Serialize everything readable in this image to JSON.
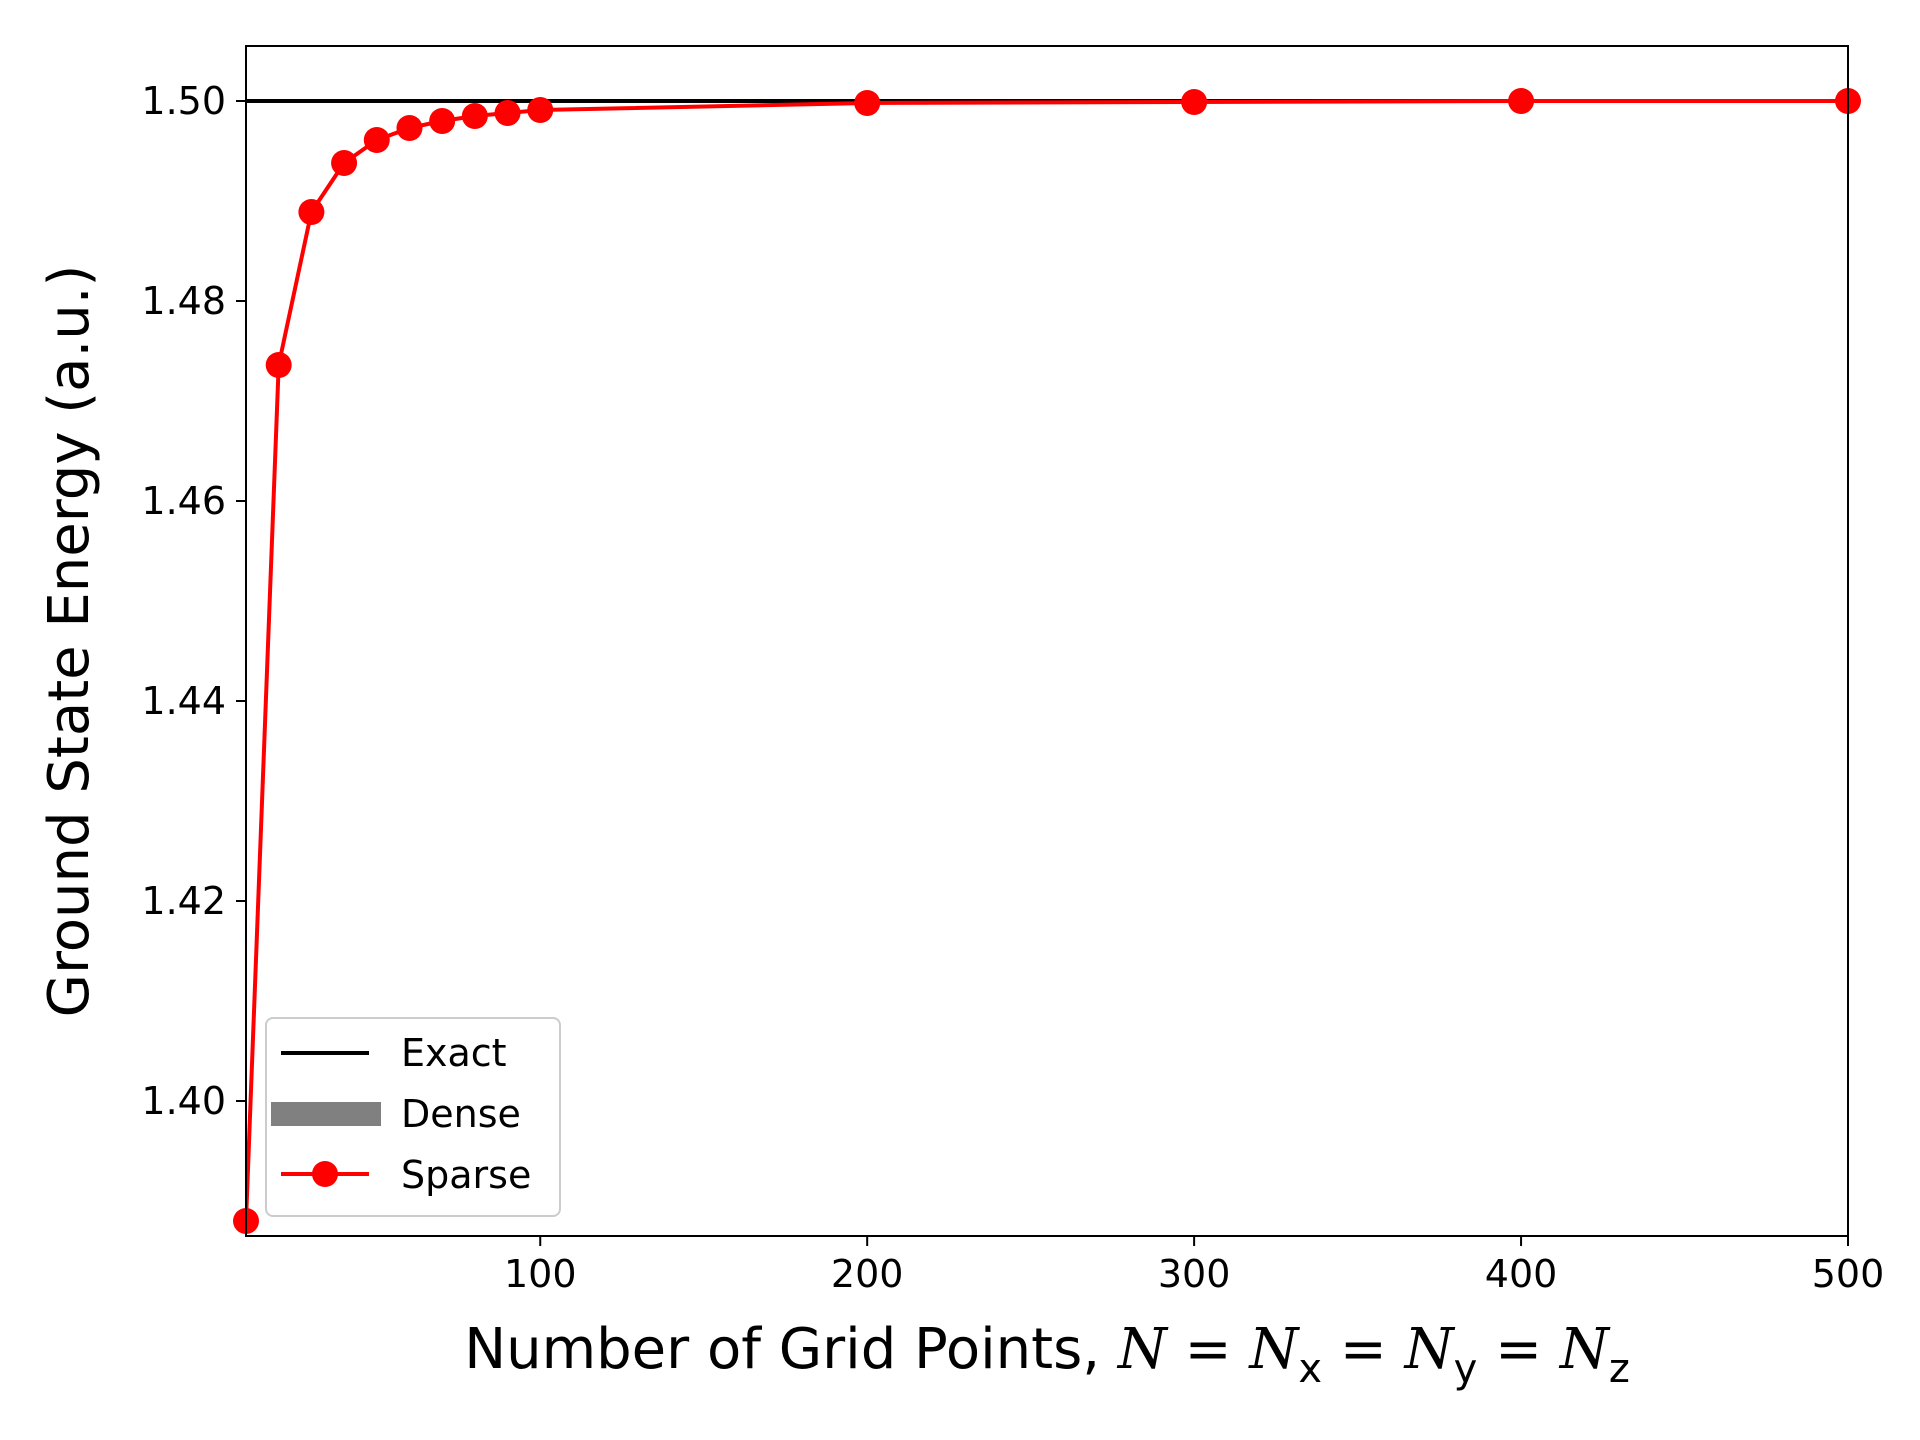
{
  "chart_data": {
    "type": "line",
    "xlabel": {
      "prefix": "Number of Grid Points, ",
      "N": "N",
      "eq": " = ",
      "Nx": "N",
      "x_sub": "x",
      "Ny": "N",
      "y_sub": "y",
      "Nz": "N",
      "z_sub": "z"
    },
    "ylabel": "Ground State Energy (a.u.)",
    "xlim": [
      10,
      500
    ],
    "ylim": [
      1.3865,
      1.5055
    ],
    "xticks": [
      {
        "value": 100,
        "label": "100"
      },
      {
        "value": 200,
        "label": "200"
      },
      {
        "value": 300,
        "label": "300"
      },
      {
        "value": 400,
        "label": "400"
      },
      {
        "value": 500,
        "label": "500"
      }
    ],
    "yticks": [
      {
        "value": 1.4,
        "label": "1.40"
      },
      {
        "value": 1.42,
        "label": "1.42"
      },
      {
        "value": 1.44,
        "label": "1.44"
      },
      {
        "value": 1.46,
        "label": "1.46"
      },
      {
        "value": 1.48,
        "label": "1.48"
      },
      {
        "value": 1.5,
        "label": "1.50"
      }
    ],
    "grid": false,
    "legend_position": "lower-left",
    "series": [
      {
        "name": "Exact",
        "style": "line",
        "color": "#000000",
        "x": [
          10,
          500
        ],
        "y": [
          1.5,
          1.5
        ]
      },
      {
        "name": "Dense",
        "style": "line",
        "color": "#808080",
        "x": [],
        "y": []
      },
      {
        "name": "Sparse",
        "style": "line-marker",
        "color": "#ff0000",
        "x": [
          10,
          20,
          30,
          40,
          50,
          60,
          70,
          80,
          90,
          100,
          200,
          300,
          400,
          500
        ],
        "y": [
          1.388,
          1.4736,
          1.4889,
          1.4938,
          1.4961,
          1.4973,
          1.498,
          1.4985,
          1.4988,
          1.4991,
          1.4998,
          1.4999,
          1.5,
          1.5
        ]
      }
    ]
  }
}
